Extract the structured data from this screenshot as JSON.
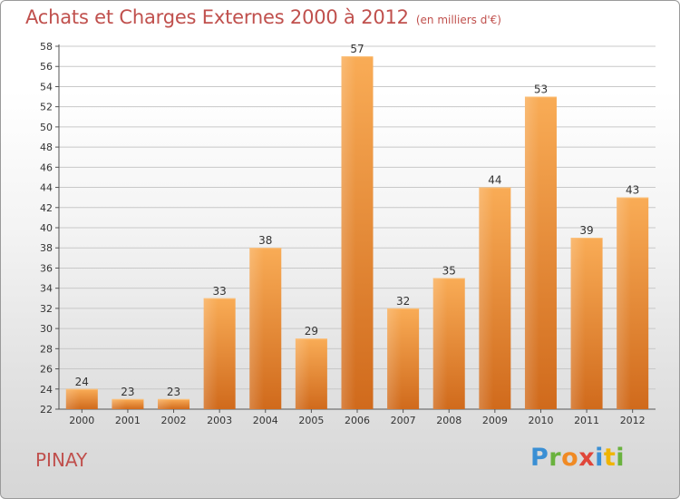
{
  "title": "Achats et Charges Externes 2000 à 2012",
  "unit": "(en milliers d'€)",
  "town": "PINAY",
  "logo": {
    "letters": [
      "P",
      "r",
      "o",
      "x",
      "i",
      "t",
      "i"
    ],
    "colors": [
      "#3a8fd4",
      "#6ab23e",
      "#f08a24",
      "#e0463a",
      "#3a8fd4",
      "#f0b400",
      "#6ab23e"
    ]
  },
  "colors": {
    "title": "#c0504d",
    "bar_light": "#f7a84f",
    "bar_dark": "#d2691e",
    "grid": "#c8c8c8"
  },
  "chart_data": {
    "type": "bar",
    "title": "Achats et Charges Externes 2000 à 2012",
    "subtitle": "(en milliers d'€)",
    "xlabel": "",
    "ylabel": "",
    "categories": [
      "2000",
      "2001",
      "2002",
      "2003",
      "2004",
      "2005",
      "2006",
      "2007",
      "2008",
      "2009",
      "2010",
      "2011",
      "2012"
    ],
    "values": [
      24,
      23,
      23,
      33,
      38,
      29,
      57,
      32,
      35,
      44,
      53,
      39,
      43
    ],
    "ylim": [
      22,
      58
    ],
    "ytick_step": 2,
    "yticks": [
      "22",
      "24",
      "26",
      "28",
      "30",
      "32",
      "34",
      "36",
      "38",
      "40",
      "42",
      "44",
      "46",
      "48",
      "50",
      "52",
      "54",
      "56",
      "58"
    ],
    "grid": true,
    "legend": "none"
  }
}
